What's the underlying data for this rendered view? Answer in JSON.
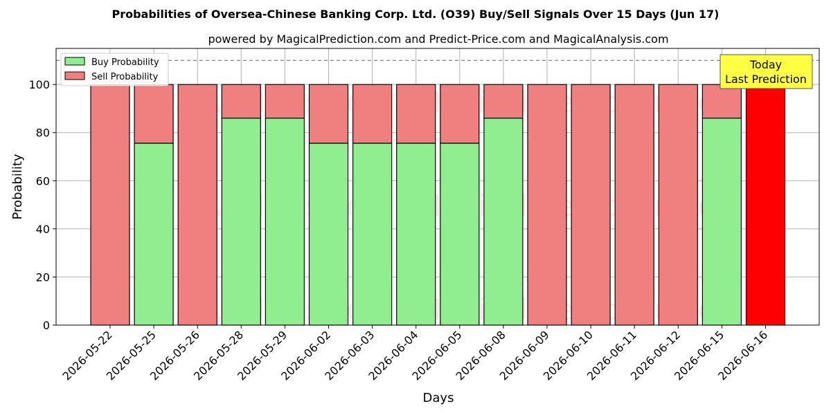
{
  "chart_data": {
    "type": "bar",
    "stacked": true,
    "title": "Probabilities of Oversea-Chinese Banking Corp. Ltd. (O39) Buy/Sell Signals Over 15 Days (Jun 17)",
    "subtitle": "powered by MagicalPrediction.com and Predict-Price.com and MagicalAnalysis.com",
    "xlabel": "Days",
    "ylabel": "Probability",
    "ylim": [
      0,
      115
    ],
    "yticks": [
      0,
      20,
      40,
      60,
      80,
      100
    ],
    "grid": true,
    "legend_position": "top-left",
    "reference_line": 110,
    "categories": [
      "2026-05-22",
      "2026-05-25",
      "2026-05-26",
      "2026-05-28",
      "2026-05-29",
      "2026-06-02",
      "2026-06-03",
      "2026-06-04",
      "2026-06-05",
      "2026-06-08",
      "2026-06-09",
      "2026-06-10",
      "2026-06-11",
      "2026-06-12",
      "2026-06-15",
      "2026-06-16"
    ],
    "series": [
      {
        "name": "Buy Probability",
        "color": "#90ee90",
        "values": [
          0,
          75.6,
          0,
          86,
          86,
          75.6,
          75.6,
          75.6,
          75.6,
          86,
          0,
          0,
          0,
          0,
          86,
          0
        ]
      },
      {
        "name": "Sell Probability",
        "color": "#f08080",
        "values": [
          100,
          24.4,
          100,
          14,
          14,
          24.4,
          24.4,
          24.4,
          24.4,
          14,
          100,
          100,
          100,
          100,
          14,
          100
        ]
      }
    ],
    "highlight": {
      "index": 15,
      "color": "#ff0000"
    },
    "annotation": {
      "lines": [
        "Today",
        "Last Prediction"
      ],
      "background": "#ffff44"
    },
    "watermarks": [
      "MagicalAnalysis.com",
      "MagicalPrediction.com"
    ]
  }
}
